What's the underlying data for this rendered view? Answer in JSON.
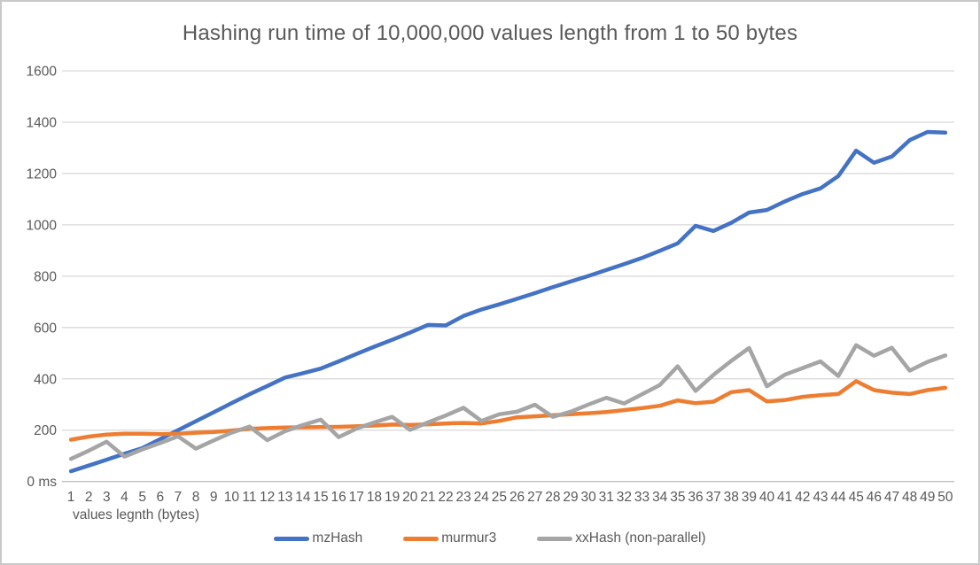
{
  "colors": {
    "text": "#595959",
    "gridline": "#D9D9D9",
    "axis_line": "#BFBFBF",
    "background": "#FFFFFF",
    "frame_border": "#C9C9C9"
  },
  "chart_data": {
    "type": "line",
    "title": "Hashing run time of 10,000,000 values length from 1 to 50 bytes",
    "xlabel": "values legnth (bytes)",
    "ylabel": "",
    "ylim": [
      0,
      1600
    ],
    "ytick_step": 200,
    "ytick_labels": [
      "0 ms",
      "200",
      "400",
      "600",
      "800",
      "1000",
      "1200",
      "1400",
      "1600"
    ],
    "grid": true,
    "legend_position": "bottom",
    "x": [
      1,
      2,
      3,
      4,
      5,
      6,
      7,
      8,
      9,
      10,
      11,
      12,
      13,
      14,
      15,
      16,
      17,
      18,
      19,
      20,
      21,
      22,
      23,
      24,
      25,
      26,
      27,
      28,
      29,
      30,
      31,
      32,
      33,
      34,
      35,
      36,
      37,
      38,
      39,
      40,
      41,
      42,
      43,
      44,
      45,
      46,
      47,
      48,
      49,
      50
    ],
    "series": [
      {
        "name": "mzHash",
        "color": "#4472C4",
        "values": [
          40,
          62,
          85,
          108,
          130,
          165,
          200,
          235,
          270,
          305,
          340,
          372,
          405,
          422,
          440,
          468,
          497,
          525,
          552,
          580,
          610,
          608,
          645,
          670,
          690,
          712,
          734,
          757,
          779,
          801,
          824,
          847,
          871,
          899,
          928,
          996,
          976,
          1008,
          1048,
          1058,
          1091,
          1120,
          1142,
          1190,
          1289,
          1242,
          1266,
          1330,
          1362,
          1359
        ]
      },
      {
        "name": "murmur3",
        "color": "#ED7D31",
        "values": [
          163,
          175,
          183,
          186,
          186,
          185,
          186,
          190,
          193,
          198,
          205,
          208,
          210,
          211,
          212,
          213,
          215,
          218,
          222,
          220,
          223,
          226,
          228,
          226,
          236,
          250,
          254,
          258,
          262,
          266,
          271,
          278,
          286,
          295,
          316,
          305,
          311,
          348,
          356,
          312,
          317,
          330,
          336,
          341,
          391,
          356,
          346,
          341,
          356,
          365
        ]
      },
      {
        "name": "xxHash (non-parallel)",
        "color": "#A5A5A5",
        "values": [
          88,
          120,
          155,
          97,
          125,
          150,
          176,
          128,
          160,
          190,
          214,
          161,
          196,
          220,
          241,
          173,
          206,
          230,
          252,
          201,
          230,
          257,
          287,
          236,
          262,
          272,
          299,
          252,
          272,
          300,
          326,
          304,
          340,
          376,
          449,
          353,
          415,
          470,
          520,
          371,
          416,
          442,
          468,
          411,
          531,
          490,
          521,
          432,
          466,
          491
        ]
      }
    ]
  }
}
